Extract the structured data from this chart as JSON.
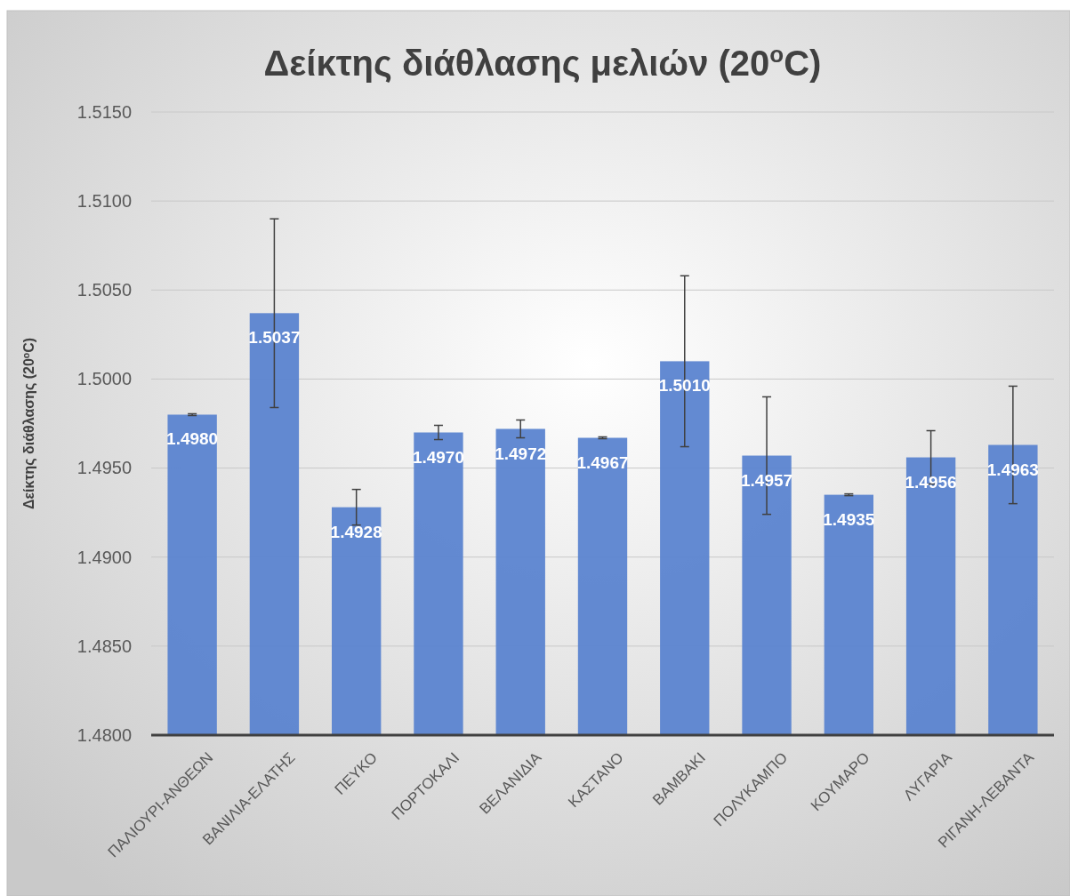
{
  "chart_data": {
    "type": "bar",
    "title": "Δείκτης διάθλασης μελιών (20$^{o}$C)",
    "ylabel": "Δείκτης διάθλασης  (20$^{o}$C)",
    "categories": [
      "ΠΑΛΙΟΥΡΙ-ΑΝΘΕΩΝ",
      "ΒΑΝΙΛΙΑ-ΕΛΑΤΗΣ",
      "ΠΕΥΚΟ",
      "ΠΟΡΤΟΚΑΛΙ",
      "ΒΕΛΑΝΙΔΙΑ",
      "ΚΑΣΤΑΝΟ",
      "ΒΑΜΒΑΚΙ",
      "ΠΟΛΥΚΑΜΠΟ",
      "ΚΟΥΜΑΡΟ",
      "ΛΥΓΑΡΙΑ",
      "ΡΙΓΑΝΗ-ΛΕΒΑΝΤΑ"
    ],
    "values": [
      1.498,
      1.5037,
      1.4928,
      1.497,
      1.4972,
      1.4967,
      1.501,
      1.4957,
      1.4935,
      1.4956,
      1.4963
    ],
    "value_labels": [
      "1.4980",
      "1.5037",
      "1.4928",
      "1.4970",
      "1.4972",
      "1.4967",
      "1.5010",
      "1.4957",
      "1.4935",
      "1.4956",
      "1.4963"
    ],
    "errors": [
      5e-05,
      0.0053,
      0.001,
      0.0004,
      0.0005,
      5e-05,
      0.0048,
      0.0033,
      5e-05,
      0.0015,
      0.0033
    ],
    "color": "#5b84d0",
    "ylim": [
      1.48,
      1.515
    ],
    "yticks": [
      {
        "value": 1.48,
        "label": "1.4800"
      },
      {
        "value": 1.485,
        "label": "1.4850"
      },
      {
        "value": 1.49,
        "label": "1.4900"
      },
      {
        "value": 1.495,
        "label": "1.4950"
      },
      {
        "value": 1.5,
        "label": "1.5000"
      },
      {
        "value": 1.505,
        "label": "1.5050"
      },
      {
        "value": 1.51,
        "label": "1.5100"
      },
      {
        "value": 1.515,
        "label": "1.5150"
      }
    ],
    "grid": "y"
  }
}
